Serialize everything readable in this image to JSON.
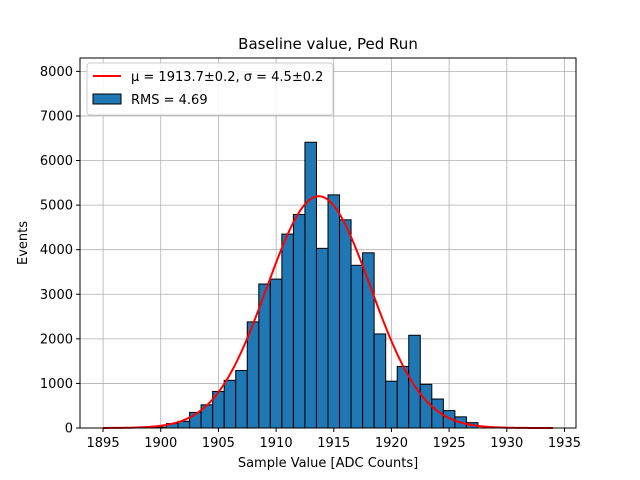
{
  "chart_data": {
    "type": "bar",
    "title": "Baseline value, Ped Run",
    "xlabel": "Sample Value [ADC Counts]",
    "ylabel": "Events",
    "xlim": [
      1893,
      1936
    ],
    "ylim": [
      0,
      8300
    ],
    "xticks": [
      1895,
      1900,
      1905,
      1910,
      1915,
      1920,
      1925,
      1930,
      1935
    ],
    "yticks": [
      0,
      1000,
      2000,
      3000,
      4000,
      5000,
      6000,
      7000,
      8000
    ],
    "grid": true,
    "bar_color": "#1f77b4",
    "bar_edge_color": "#000000",
    "fit_color": "#ff0000",
    "bins": {
      "x": [
        1900,
        1901,
        1902,
        1903,
        1904,
        1905,
        1906,
        1907,
        1908,
        1909,
        1910,
        1911,
        1912,
        1913,
        1914,
        1915,
        1916,
        1917,
        1918,
        1919,
        1920,
        1921,
        1922,
        1923,
        1924,
        1925,
        1926,
        1927
      ],
      "values": [
        20,
        100,
        150,
        350,
        520,
        820,
        1070,
        1290,
        2380,
        3230,
        3340,
        4350,
        4790,
        6410,
        4030,
        5230,
        4670,
        3650,
        3930,
        2110,
        1050,
        1380,
        2080,
        980,
        650,
        390,
        250,
        120
      ]
    },
    "fit": {
      "type": "gaussian",
      "mu": 1913.7,
      "sigma": 4.5,
      "amplitude": 5200,
      "x_range": [
        1895,
        1934
      ]
    },
    "legend": {
      "position": "top-left",
      "entries": [
        {
          "kind": "line",
          "label": "μ = 1913.7±0.2, σ = 4.5±0.2"
        },
        {
          "kind": "patch",
          "label": "RMS = 4.69"
        }
      ]
    }
  }
}
